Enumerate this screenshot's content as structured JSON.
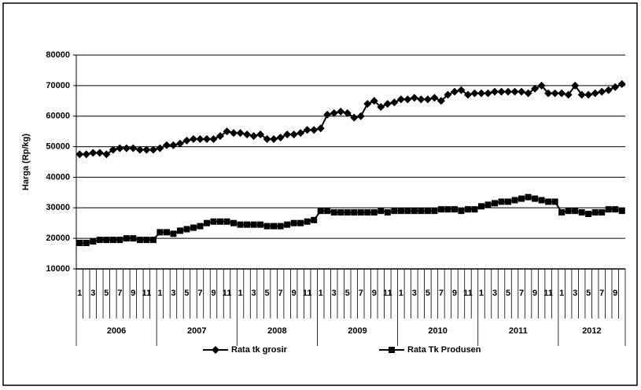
{
  "chart_data": {
    "type": "line",
    "y_label": "Harga (Rp/kg)",
    "categories": [
      "1",
      null,
      "3",
      null,
      "5",
      null,
      "7",
      null,
      "9",
      null,
      "11",
      null,
      "1",
      null,
      "3",
      null,
      "5",
      null,
      "7",
      null,
      "9",
      null,
      "11",
      null,
      "1",
      null,
      "3",
      null,
      "5",
      null,
      "7",
      null,
      "9",
      null,
      "11",
      null,
      "1",
      null,
      "3",
      null,
      "5",
      null,
      "7",
      null,
      "9",
      null,
      "11",
      null,
      "1",
      null,
      "3",
      null,
      "5",
      null,
      "7",
      null,
      "9",
      null,
      "11",
      null,
      "1",
      null,
      "3",
      null,
      "5",
      null,
      "7",
      null,
      "9",
      null,
      "11",
      null,
      "1",
      null,
      "3",
      null,
      "5",
      null,
      "7",
      null,
      "9",
      null
    ],
    "years": [
      "2006",
      "2007",
      "2008",
      "2009",
      "2010",
      "2011",
      "2012"
    ],
    "series": [
      {
        "name": "Rata tk grosir",
        "color": "#000000",
        "marker": "diamond",
        "values": [
          47500,
          47500,
          48000,
          48000,
          47500,
          49000,
          49500,
          49500,
          49500,
          49000,
          49000,
          49000,
          49500,
          50500,
          50500,
          51000,
          52000,
          52500,
          52500,
          52500,
          52500,
          53500,
          55000,
          54500,
          54500,
          54000,
          53500,
          54000,
          52500,
          52500,
          53000,
          54000,
          54000,
          54500,
          55500,
          55500,
          56000,
          60500,
          61000,
          61500,
          61000,
          59500,
          60000,
          64000,
          65000,
          63000,
          64000,
          64500,
          65500,
          65500,
          66000,
          65500,
          65500,
          66000,
          65000,
          67000,
          68000,
          68500,
          67000,
          67500,
          67500,
          67500,
          68000,
          68000,
          68000,
          68000,
          68000,
          67500,
          69000,
          70000,
          67500,
          67500,
          67500,
          67000,
          70000,
          67000,
          67000,
          67500,
          68000,
          68500,
          69500,
          70500
        ]
      },
      {
        "name": "Rata Tk Produsen",
        "color": "#000000",
        "marker": "square",
        "values": [
          18500,
          18500,
          19000,
          19500,
          19500,
          19500,
          19500,
          20000,
          20000,
          19500,
          19500,
          19500,
          22000,
          22000,
          21500,
          22500,
          23000,
          23500,
          24000,
          25000,
          25500,
          25500,
          25500,
          25000,
          24500,
          24500,
          24500,
          24500,
          24000,
          24000,
          24000,
          24500,
          25000,
          25000,
          25500,
          26000,
          29000,
          29000,
          28500,
          28500,
          28500,
          28500,
          28500,
          28500,
          28500,
          29000,
          28500,
          29000,
          29000,
          29000,
          29000,
          29000,
          29000,
          29000,
          29500,
          29500,
          29500,
          29000,
          29500,
          29500,
          30500,
          31000,
          31500,
          32000,
          32000,
          32500,
          33000,
          33500,
          33000,
          32500,
          32000,
          32000,
          28500,
          29000,
          29000,
          28500,
          28000,
          28500,
          28500,
          29500,
          29500,
          29000
        ]
      }
    ],
    "ylim": [
      10000,
      80000
    ],
    "yticks": [
      10000,
      20000,
      30000,
      40000,
      50000,
      60000,
      70000,
      80000
    ],
    "grid": true,
    "legend": "bottom"
  }
}
